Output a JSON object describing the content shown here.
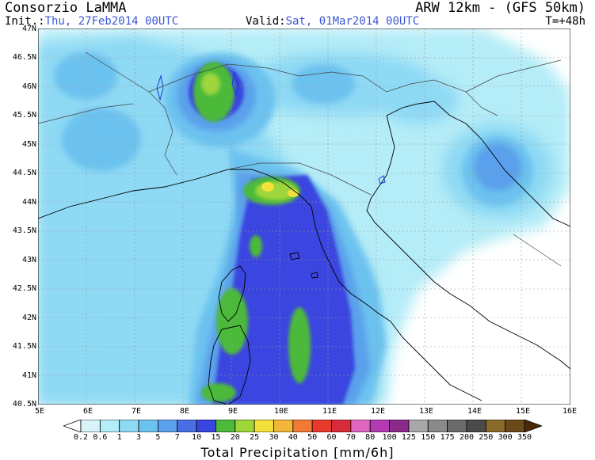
{
  "header": {
    "org": "Consorzio LaMMA",
    "model": "ARW 12km - (GFS 50km)",
    "init_label": "Init.:",
    "init_value": "Thu, 27Feb2014 00UTC",
    "valid_label": "Valid:",
    "valid_value": "Sat, 01Mar2014 00UTC",
    "timestep": "T=+48h"
  },
  "map": {
    "type": "precipitation-map",
    "lat_ticks": [
      "47N",
      "46.5N",
      "46N",
      "45.5N",
      "45N",
      "44.5N",
      "44N",
      "43.5N",
      "43N",
      "42.5N",
      "42N",
      "41.5N",
      "41N",
      "40.5N"
    ],
    "lon_ticks": [
      "5E",
      "6E",
      "7E",
      "8E",
      "9E",
      "10E",
      "11E",
      "12E",
      "13E",
      "14E",
      "15E",
      "16E"
    ],
    "lat_range": [
      40.5,
      47
    ],
    "lon_range": [
      5,
      16
    ]
  },
  "colorbar": {
    "title": "Total Precipitation [mm/6h]",
    "labels": [
      "0.2",
      "0.6",
      "1",
      "3",
      "5",
      "7",
      "10",
      "15",
      "20",
      "25",
      "30",
      "40",
      "50",
      "60",
      "70",
      "80",
      "100",
      "125",
      "150",
      "175",
      "200",
      "250",
      "300",
      "350"
    ],
    "colors": [
      "#ffffff",
      "#d8f4fb",
      "#b4ecf7",
      "#8ed9f4",
      "#6cc2ef",
      "#5aa0ec",
      "#4a6ee6",
      "#3a44df",
      "#4cba3a",
      "#9ed63a",
      "#f2e13a",
      "#f2b63a",
      "#f27a32",
      "#e83a2a",
      "#d82a3a",
      "#e066c0",
      "#b43ab4",
      "#8c2a8c",
      "#a8a8a8",
      "#8a8a8a",
      "#6a6a6a",
      "#4a4a4a",
      "#8a6a2a",
      "#6a4a1a",
      "#4a2a0a"
    ]
  }
}
